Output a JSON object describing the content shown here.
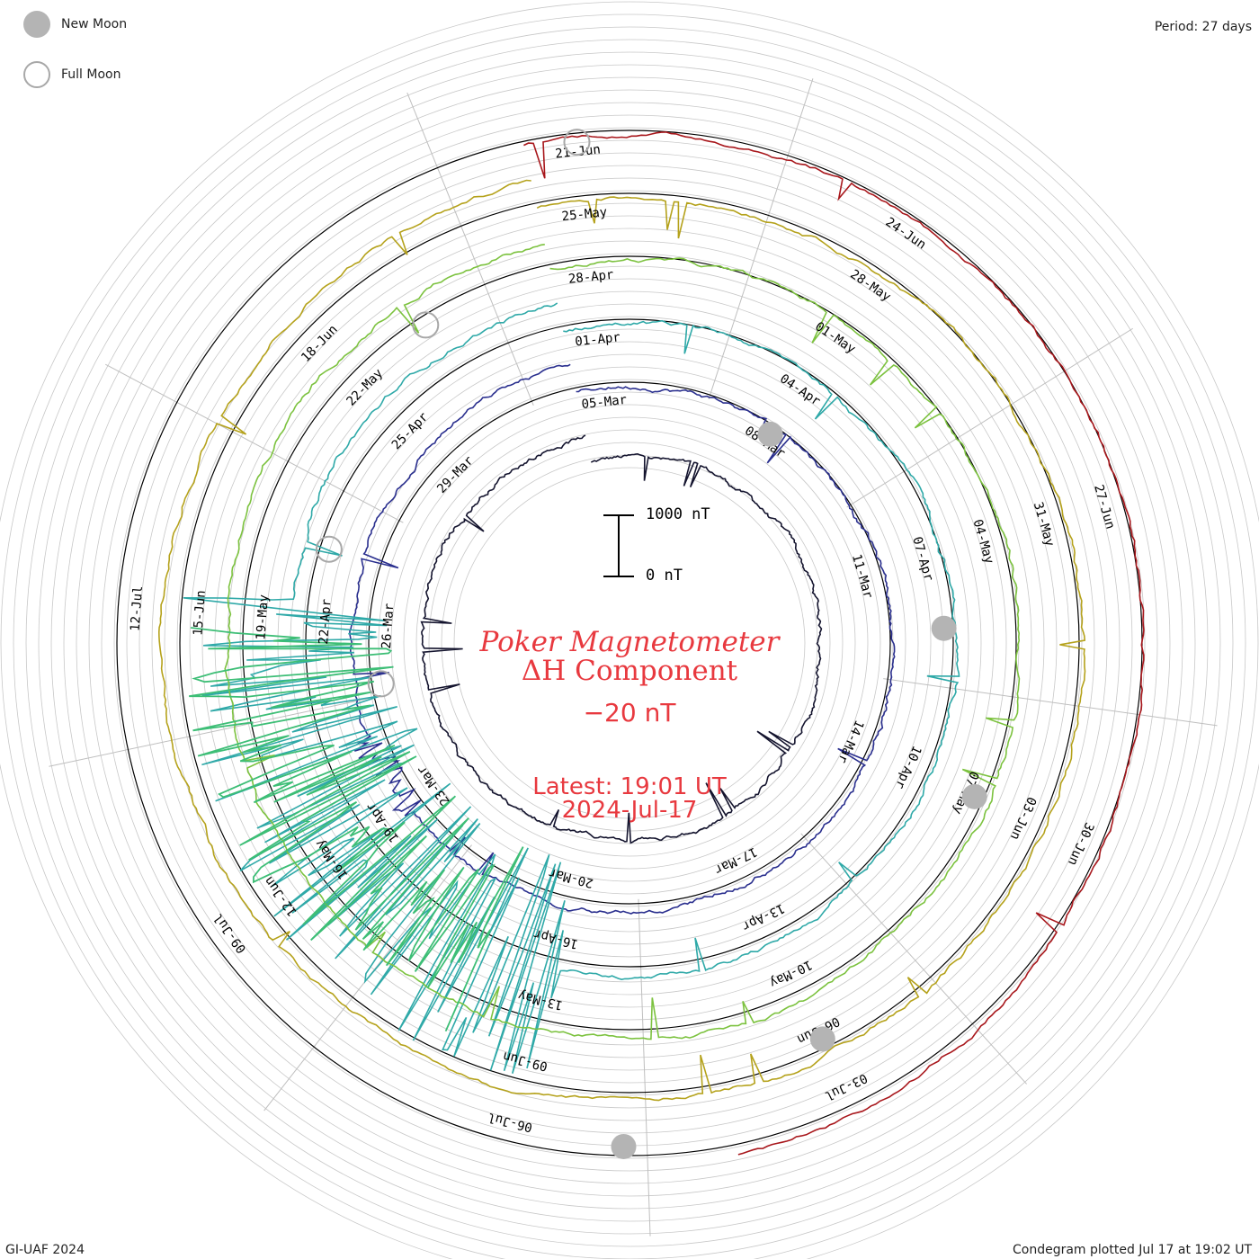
{
  "legend": {
    "new_moon_label": "New Moon",
    "full_moon_label": "Full Moon"
  },
  "period_label": "Period: 27 days",
  "credit_label": "GI-UAF 2024",
  "plotted_label": "Condegram plotted Jul 17 at 19:02 UT",
  "title": {
    "line1": "Poker Magnetometer",
    "line2": "ΔH Component",
    "baseline": "−20 nT"
  },
  "latest": {
    "line1": "Latest: 19:01 UT",
    "line2": "2024-Jul-17"
  },
  "scale_bar": {
    "top_label": "1000 nT",
    "bottom_label": "0 nT"
  },
  "colors": {
    "grid": "#c8c8c8",
    "spokes": "#bfbfbf",
    "baseline_ring": "#000000",
    "moon_new": "#b4b4b4",
    "moon_full": "#a8a8a8",
    "title": "#e8393f",
    "cycles": [
      "#14142e",
      "#2a2f8e",
      "#2fa9a8",
      "#7cc23f",
      "#b5a21c",
      "#a8171c"
    ],
    "storm": "#3dbe76",
    "orange_cycle": "#b6620f"
  },
  "chart_data": {
    "type": "condegram",
    "period_days": 27,
    "units": "nT",
    "cycles": [
      {
        "labels": [
          "05-Mar",
          "08-Mar",
          "11-Mar",
          "14-Mar",
          "17-Mar",
          "20-Mar",
          "23-Mar",
          "26-Mar",
          "29-Mar"
        ]
      },
      {
        "labels": [
          "01-Apr",
          "04-Apr",
          "07-Apr",
          "10-Apr",
          "13-Apr",
          "16-Apr",
          "19-Apr",
          "22-Apr",
          "25-Apr"
        ]
      },
      {
        "labels": [
          "28-Apr",
          "01-May",
          "04-May",
          "07-May",
          "10-May",
          "13-May",
          "16-May",
          "19-May",
          "22-May"
        ]
      },
      {
        "labels": [
          "25-May",
          "28-May",
          "31-May",
          "03-Jun",
          "06-Jun",
          "09-Jun",
          "12-Jun",
          "15-Jun",
          "18-Jun"
        ]
      },
      {
        "labels": [
          "21-Jun",
          "24-Jun",
          "27-Jun",
          "30-Jun",
          "03-Jul",
          "06-Jul",
          "09-Jul",
          "12-Jul"
        ]
      }
    ],
    "new_moons": [
      "08-Mar",
      "08-Apr",
      "07-May",
      "06-Jun",
      "05-Jul"
    ],
    "full_moons": [
      "25-Mar",
      "23-Apr",
      "23-May",
      "21-Jun"
    ],
    "storms": [
      {
        "date": "24-Mar",
        "peak_nT": 400
      },
      {
        "date": "10-May",
        "peak_nT": 1900
      }
    ]
  }
}
